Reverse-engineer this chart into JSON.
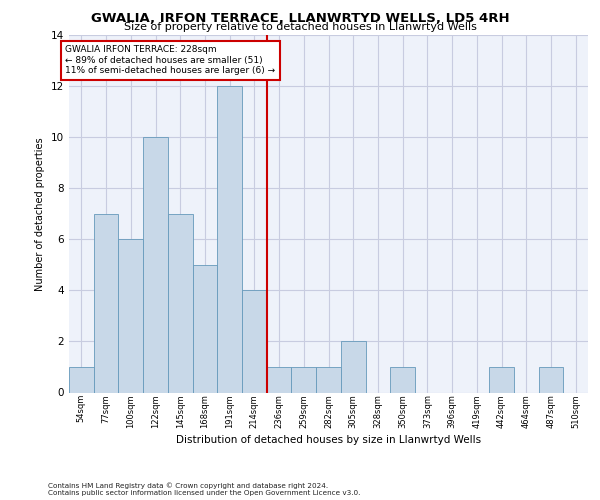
{
  "title1": "GWALIA, IRFON TERRACE, LLANWRTYD WELLS, LD5 4RH",
  "title2": "Size of property relative to detached houses in Llanwrtyd Wells",
  "xlabel": "Distribution of detached houses by size in Llanwrtyd Wells",
  "ylabel": "Number of detached properties",
  "categories": [
    "54sqm",
    "77sqm",
    "100sqm",
    "122sqm",
    "145sqm",
    "168sqm",
    "191sqm",
    "214sqm",
    "236sqm",
    "259sqm",
    "282sqm",
    "305sqm",
    "328sqm",
    "350sqm",
    "373sqm",
    "396sqm",
    "419sqm",
    "442sqm",
    "464sqm",
    "487sqm",
    "510sqm"
  ],
  "values": [
    1,
    7,
    6,
    10,
    7,
    5,
    12,
    4,
    1,
    1,
    1,
    2,
    0,
    1,
    0,
    0,
    0,
    1,
    0,
    1,
    0
  ],
  "bar_color": "#c8d8e8",
  "bar_edge_color": "#6699bb",
  "vline_x": 7.5,
  "vline_color": "#cc0000",
  "annotation_title": "GWALIA IRFON TERRACE: 228sqm",
  "annotation_line1": "← 89% of detached houses are smaller (51)",
  "annotation_line2": "11% of semi-detached houses are larger (6) →",
  "annotation_box_color": "#cc0000",
  "annotation_text_color": "#000000",
  "annotation_bg_color": "#ffffff",
  "ylim": [
    0,
    14
  ],
  "yticks": [
    0,
    2,
    4,
    6,
    8,
    10,
    12,
    14
  ],
  "grid_color": "#c8cce0",
  "background_color": "#eef2fa",
  "footnote1": "Contains HM Land Registry data © Crown copyright and database right 2024.",
  "footnote2": "Contains public sector information licensed under the Open Government Licence v3.0."
}
